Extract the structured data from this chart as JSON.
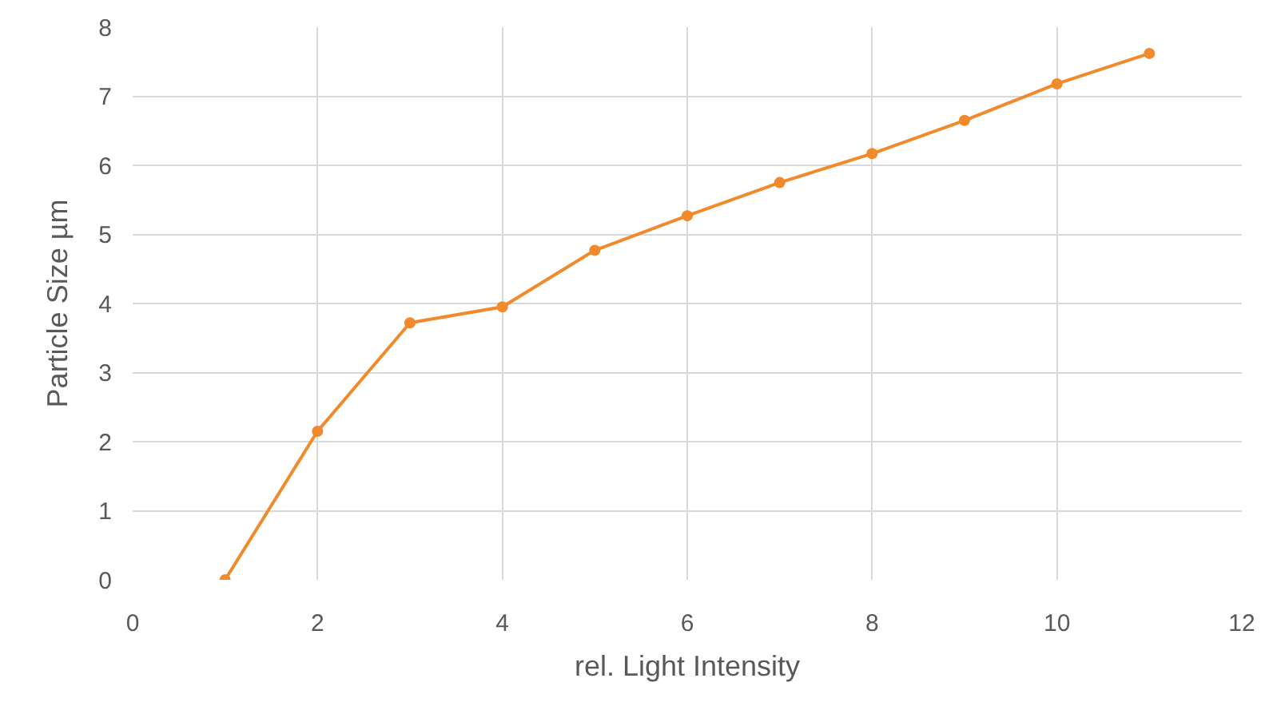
{
  "chart_data": {
    "type": "line",
    "xlabel": "rel. Light Intensity",
    "ylabel": "Particle Size µm",
    "x": [
      1,
      2,
      3,
      4,
      5,
      6,
      7,
      8,
      9,
      10,
      11
    ],
    "series": [
      {
        "color": "#f08a2c",
        "values": [
          0,
          2.15,
          3.72,
          3.95,
          4.77,
          5.27,
          5.75,
          6.17,
          6.65,
          7.18,
          7.62
        ]
      }
    ],
    "xlim": [
      0,
      12
    ],
    "xticks": [
      0,
      2,
      4,
      6,
      8,
      10,
      12
    ],
    "ylim": [
      0,
      8
    ],
    "yticks": [
      0,
      1,
      2,
      3,
      4,
      5,
      6,
      7,
      8
    ],
    "grid": true,
    "marker": "circle",
    "line_style": "solid"
  }
}
